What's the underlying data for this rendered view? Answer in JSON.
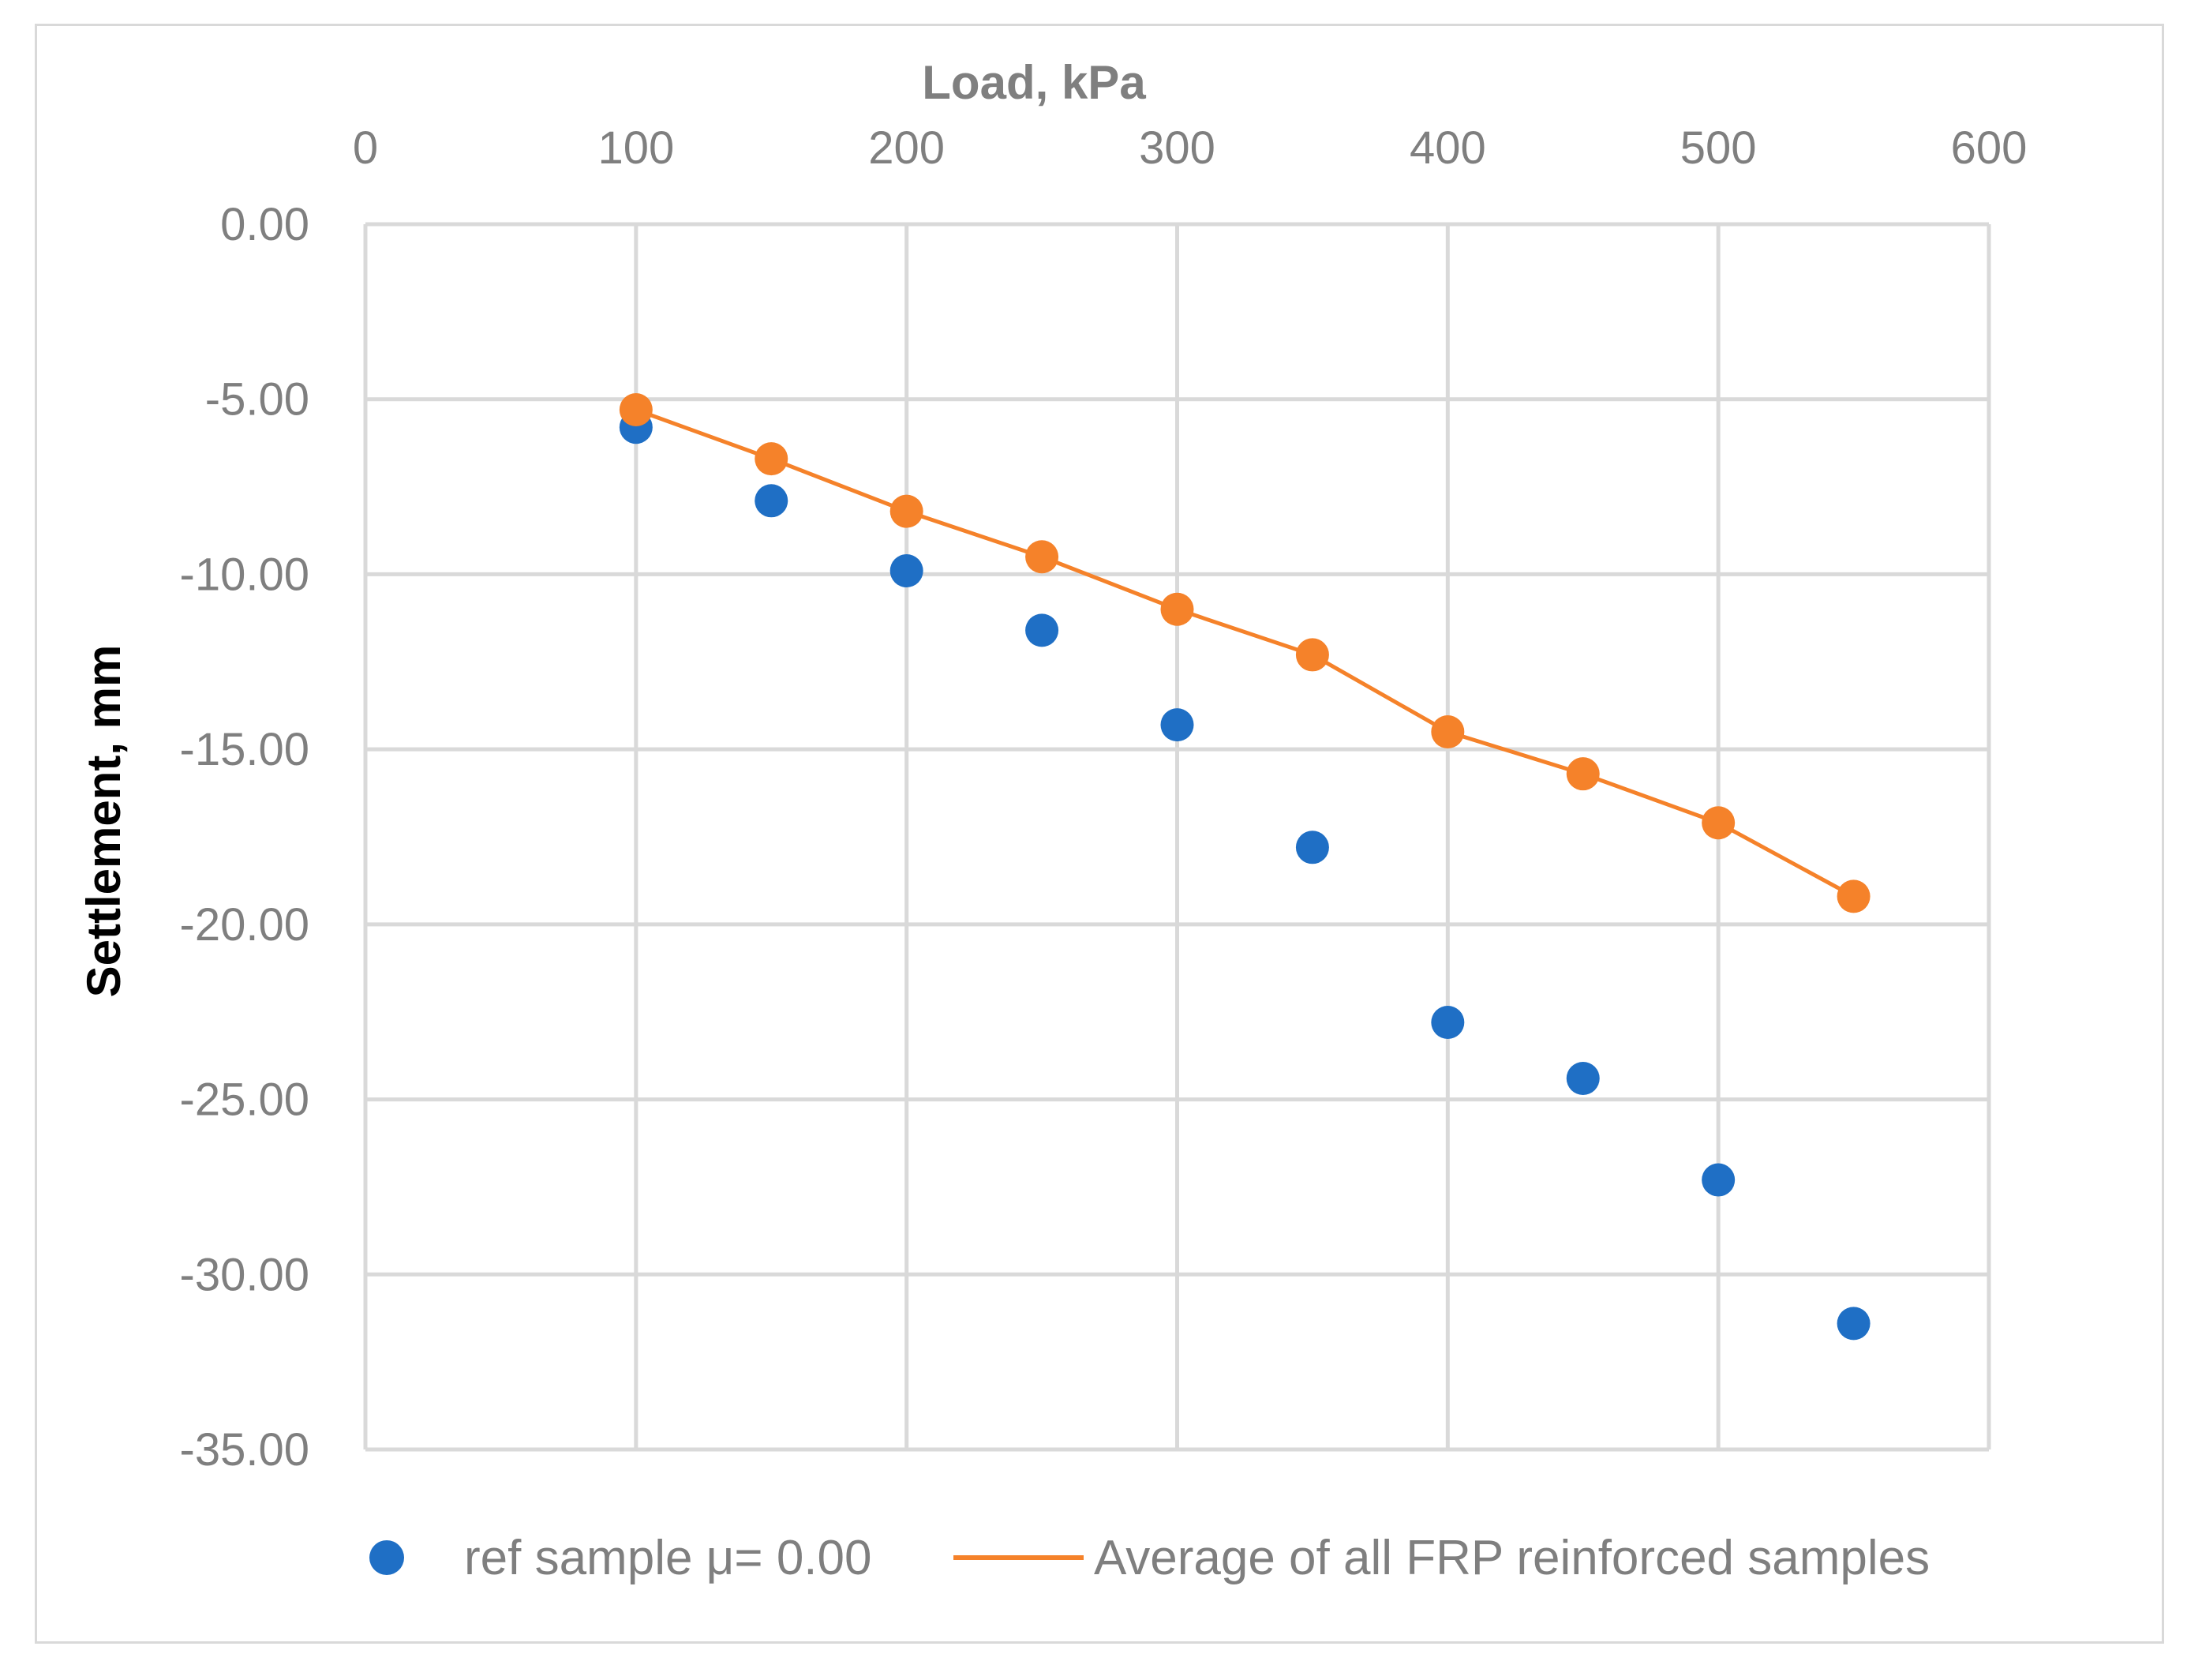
{
  "chart_data": {
    "type": "scatter",
    "title": "",
    "xlabel": "Load, kPa",
    "ylabel": "Settlement, mm",
    "xlim": [
      0,
      600
    ],
    "ylim": [
      -35,
      0
    ],
    "x_ticks": [
      "0",
      "100",
      "200",
      "300",
      "400",
      "500",
      "600"
    ],
    "y_ticks": [
      "0.00",
      "-5.00",
      "-10.00",
      "-15.00",
      "-20.00",
      "-25.00",
      "-30.00",
      "-35.00"
    ],
    "x_axis_position": "top",
    "grid": true,
    "legend_position": "bottom",
    "series": [
      {
        "name": "ref sample μ= 0.00",
        "style": "markers",
        "color": "#1f6fc5",
        "x": [
          100,
          150,
          200,
          250,
          300,
          350,
          400,
          450,
          500,
          550
        ],
        "y": [
          -5.8,
          -7.9,
          -9.9,
          -11.6,
          -14.3,
          -17.8,
          -22.8,
          -24.4,
          -27.3,
          -31.4
        ]
      },
      {
        "name": "Average of all FRP reinforced samples",
        "style": "line+markers",
        "color": "#f5822a",
        "x": [
          100,
          150,
          200,
          250,
          300,
          350,
          400,
          450,
          500,
          550
        ],
        "y": [
          -5.3,
          -6.7,
          -8.2,
          -9.5,
          -11.0,
          -12.3,
          -14.5,
          -15.7,
          -17.1,
          -19.2
        ]
      }
    ]
  }
}
